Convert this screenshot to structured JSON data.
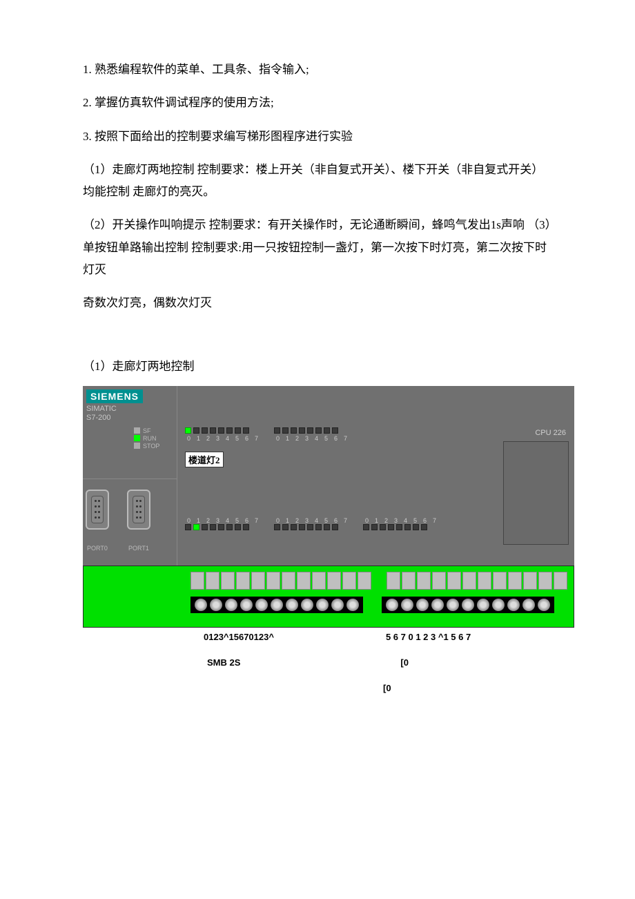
{
  "text": {
    "item1": "1.  熟悉编程软件的菜单、工具条、指令输入;",
    "item2": "2.   掌握仿真软件调试程序的使用方法;",
    "item3": "3.  按照下面给出的控制要求编写梯形图程序进行实验",
    "para1": "（1）走廊灯两地控制 控制要求：楼上开关（非自复式开关）、楼下开关（非自复式开关）均能控制  走廊灯的亮灭。",
    "para2": "（2）开关操作叫响提示 控制要求：有开关操作时，无论通断瞬间，蜂鸣气发出1s声响 （3）单按钮单路输出控制 控制要求:用一只按钮控制一盏灯，第一次按下时灯亮，第二次按下时灯灭",
    "para3": "奇数次灯亮，偶数次灯灭",
    "section": "（1）走廊灯两地控制"
  },
  "plc": {
    "logo": "SIEMENS",
    "simatic": "SIMATIC",
    "model": "S7-200",
    "cpu": "CPU 226",
    "leds": {
      "sf": "SF",
      "run": "RUN",
      "stop": "STOP"
    },
    "tag": "楼道灯2",
    "port0": "PORT0",
    "port1": "PORT1",
    "digits": [
      "0",
      "1",
      "2",
      "3",
      "4",
      "5",
      "6",
      "7"
    ],
    "top_group1_on": [
      0
    ],
    "top_group2_on": [],
    "bot_group1_on": [
      1
    ],
    "bot_group2_on": [],
    "bot_group3_on": []
  },
  "bottom": {
    "left_nums": "0123^15670123^",
    "right_nums": "5 6 7 0 1 2 3 ^1 5 6 7",
    "smb": "SMB 2S",
    "zero": "[0",
    "zero2": "[0"
  },
  "colors": {
    "panel_bg": "#707070",
    "green": "#00e000",
    "siemens": "#009090"
  }
}
